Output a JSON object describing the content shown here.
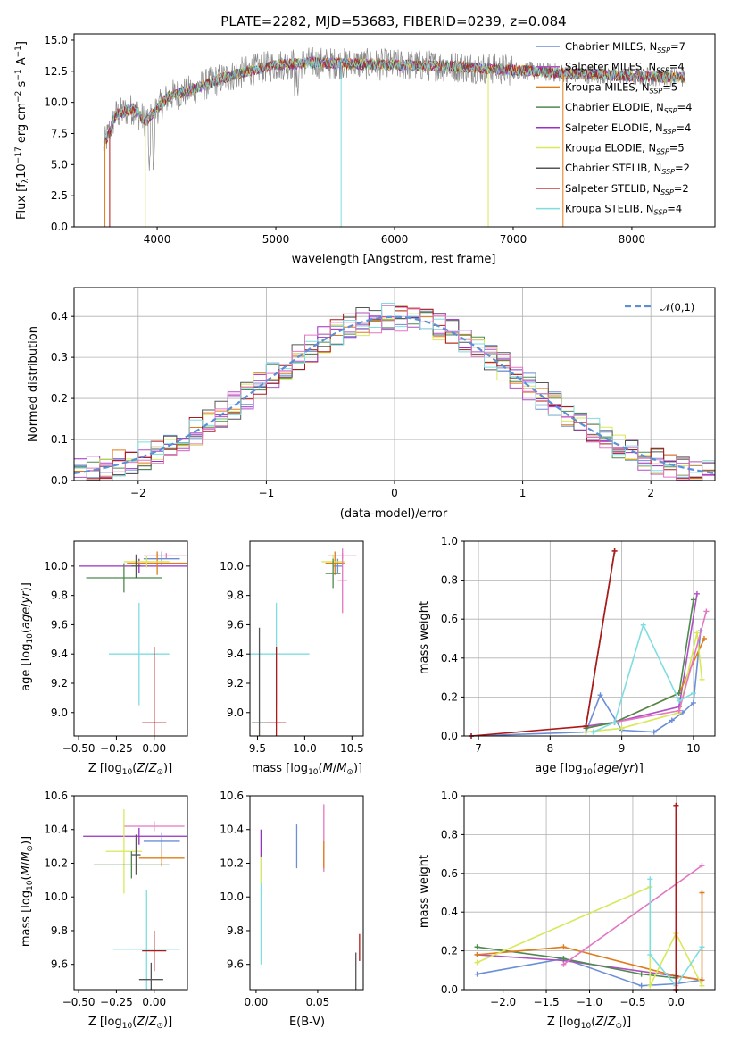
{
  "chart_data": [
    {
      "panel": "spectrum",
      "type": "line",
      "title": "PLATE=2282, MJD=53683, FIBERID=0239, z=0.084",
      "xlabel": "wavelength [Angstrom, rest frame]",
      "ylabel": "Flux [f_λ10^-17 erg cm^-2 s^-1 A^-1]",
      "xlim": [
        3300,
        8700
      ],
      "ylim": [
        0,
        15.5
      ],
      "xticks": [
        "4000",
        "5000",
        "6000",
        "7000",
        "8000"
      ],
      "yticks": [
        "0.0",
        "2.5",
        "5.0",
        "7.5",
        "10.0",
        "12.5",
        "15.0"
      ],
      "grid": false,
      "legend_position": "top-right",
      "legend": [
        {
          "name": "Chabrier MILES, N_SSP=7",
          "color": "#6b8fd6"
        },
        {
          "name": "Salpeter MILES, N_SSP=4",
          "color": "#b14fc5"
        },
        {
          "name": "Kroupa MILES, N_SSP=5",
          "color": "#e07b1a"
        },
        {
          "name": "Chabrier ELODIE, N_SSP=4",
          "color": "#4e8a4e"
        },
        {
          "name": "Salpeter ELODIE, N_SSP=4",
          "color": "#9b2ec4"
        },
        {
          "name": "Kroupa ELODIE, N_SSP=5",
          "color": "#d8e85a"
        },
        {
          "name": "Chabrier STELIB, N_SSP=2",
          "color": "#555555"
        },
        {
          "name": "Salpeter STELIB, N_SSP=2",
          "color": "#b01818"
        },
        {
          "name": "Kroupa STELIB, N_SSP=4",
          "color": "#7fdde0"
        }
      ],
      "data_color": "#888888",
      "continuum": [
        [
          3550,
          6.5
        ],
        [
          3650,
          9.0
        ],
        [
          3800,
          9.5
        ],
        [
          3900,
          8.5
        ],
        [
          4000,
          9.5
        ],
        [
          4100,
          10.5
        ],
        [
          4300,
          11.0
        ],
        [
          4500,
          11.8
        ],
        [
          4800,
          12.6
        ],
        [
          5000,
          13.0
        ],
        [
          5300,
          13.2
        ],
        [
          5600,
          13.1
        ],
        [
          6000,
          13.0
        ],
        [
          6500,
          12.9
        ],
        [
          7000,
          12.6
        ],
        [
          7500,
          12.3
        ],
        [
          8000,
          12.1
        ],
        [
          8450,
          12.0
        ]
      ]
    },
    {
      "panel": "residuals",
      "type": "step",
      "xlabel": "(data-model)/error",
      "ylabel": "Normed distribution",
      "xlim": [
        -2.5,
        2.5
      ],
      "ylim": [
        0,
        0.47
      ],
      "xticks": [
        "−2",
        "−1",
        "0",
        "1",
        "2"
      ],
      "yticks": [
        "0.0",
        "0.1",
        "0.2",
        "0.3",
        "0.4"
      ],
      "grid": true,
      "legend_position": "top-right",
      "legend": [
        {
          "name": "𝒩(0,1)",
          "color": "#5b8fd6",
          "style": "dashed"
        }
      ],
      "series_colors": [
        "#6b8fd6",
        "#b14fc5",
        "#e07b1a",
        "#4e8a4e",
        "#9b2ec4",
        "#d8e85a",
        "#555555",
        "#b01818",
        "#7fdde0",
        "#e377c2"
      ]
    },
    {
      "panel": "age-vs-Z",
      "type": "errorbar",
      "xlabel": "Z [log10(Z/Z⊙)]",
      "ylabel": "age  [log10(age/yr)]",
      "xlim": [
        -0.53,
        0.22
      ],
      "ylim": [
        8.84,
        10.17
      ],
      "xticks": [
        "−0.50",
        "−0.25",
        "0.00"
      ],
      "yticks": [
        "9.0",
        "9.2",
        "9.4",
        "9.6",
        "9.8",
        "10.0"
      ],
      "points": [
        {
          "x": -0.1,
          "y": 10.0,
          "xerr": 0.4,
          "yerr": 0.05,
          "color": "#9b2ec4"
        },
        {
          "x": 0.08,
          "y": 10.07,
          "xerr": 0.15,
          "yerr": 0.02,
          "color": "#e377c2"
        },
        {
          "x": 0.05,
          "y": 10.05,
          "xerr": 0.12,
          "yerr": 0.05,
          "color": "#6b8fd6"
        },
        {
          "x": 0.02,
          "y": 10.02,
          "xerr": 0.2,
          "yerr": 0.08,
          "color": "#e07b1a"
        },
        {
          "x": -0.05,
          "y": 10.03,
          "xerr": 0.15,
          "yerr": 0.04,
          "color": "#d8e85a"
        },
        {
          "x": -0.2,
          "y": 9.92,
          "xerr": 0.25,
          "yerr": 0.1,
          "color": "#4e8a4e"
        },
        {
          "x": -0.1,
          "y": 9.4,
          "xerr": 0.2,
          "yerr": 0.35,
          "color": "#7fdde0"
        },
        {
          "x": 0.0,
          "y": 8.93,
          "xerr": 0.08,
          "yerr": 0.52,
          "color": "#b01818"
        },
        {
          "x": -0.12,
          "y": 10.0,
          "xerr": 0.03,
          "yerr": 0.08,
          "color": "#555555"
        }
      ]
    },
    {
      "panel": "age-vs-mass",
      "type": "errorbar",
      "xlabel": "mass [log10(M/M⊙)]",
      "xlim": [
        9.42,
        10.62
      ],
      "ylim": [
        8.84,
        10.17
      ],
      "xticks": [
        "9.5",
        "10.0",
        "10.5"
      ],
      "yticks": [
        "9.0",
        "9.2",
        "9.4",
        "9.6",
        "9.8",
        "10.0"
      ],
      "points": [
        {
          "x": 10.4,
          "y": 10.07,
          "xerr": 0.15,
          "yerr": 0.02,
          "color": "#e377c2"
        },
        {
          "x": 10.35,
          "y": 10.0,
          "xerr": 0.05,
          "yerr": 0.05,
          "color": "#6b8fd6"
        },
        {
          "x": 10.32,
          "y": 10.02,
          "xerr": 0.1,
          "yerr": 0.08,
          "color": "#e07b1a"
        },
        {
          "x": 10.3,
          "y": 10.03,
          "xerr": 0.12,
          "yerr": 0.05,
          "color": "#d8e85a"
        },
        {
          "x": 10.3,
          "y": 9.95,
          "xerr": 0.08,
          "yerr": 0.1,
          "color": "#4e8a4e"
        },
        {
          "x": 10.4,
          "y": 9.9,
          "xerr": 0.05,
          "yerr": 0.22,
          "color": "#e377c2"
        },
        {
          "x": 9.7,
          "y": 9.4,
          "xerr": 0.35,
          "yerr": 0.35,
          "color": "#7fdde0"
        },
        {
          "x": 9.7,
          "y": 8.93,
          "xerr": 0.1,
          "yerr": 0.52,
          "color": "#b01818"
        },
        {
          "x": 9.52,
          "y": 8.93,
          "xerr": 0.08,
          "yerr": 0.65,
          "color": "#555555"
        }
      ]
    },
    {
      "panel": "mass-weight-vs-age",
      "type": "line",
      "xlabel": "age  [log10(age/yr)]",
      "ylabel": "mass weight",
      "xlim": [
        6.8,
        10.3
      ],
      "ylim": [
        0,
        1.0
      ],
      "xticks": [
        "7",
        "8",
        "9",
        "10"
      ],
      "yticks": [
        "0.0",
        "0.2",
        "0.4",
        "0.6",
        "0.8",
        "1.0"
      ],
      "grid": true,
      "series": [
        {
          "color": "#6b8fd6",
          "x": [
            6.9,
            8.5,
            8.7,
            9.0,
            9.45,
            9.7,
            9.85,
            10.0,
            10.1
          ],
          "y": [
            0.0,
            0.02,
            0.21,
            0.03,
            0.02,
            0.08,
            0.12,
            0.17,
            0.54
          ]
        },
        {
          "color": "#b14fc5",
          "x": [
            8.5,
            8.9,
            9.8,
            10.05
          ],
          "y": [
            0.05,
            0.07,
            0.15,
            0.73
          ]
        },
        {
          "color": "#e07b1a",
          "x": [
            8.5,
            8.9,
            9.8,
            10.15
          ],
          "y": [
            0.04,
            0.07,
            0.22,
            0.5
          ]
        },
        {
          "color": "#4e8a4e",
          "x": [
            8.5,
            8.9,
            9.8,
            10.0
          ],
          "y": [
            0.04,
            0.07,
            0.22,
            0.7
          ]
        },
        {
          "color": "#d8e85a",
          "x": [
            8.5,
            9.0,
            9.8,
            10.05,
            10.12
          ],
          "y": [
            0.02,
            0.04,
            0.12,
            0.53,
            0.29
          ]
        },
        {
          "color": "#e377c2",
          "x": [
            8.9,
            9.8,
            10.18
          ],
          "y": [
            0.07,
            0.13,
            0.64
          ]
        },
        {
          "color": "#7fdde0",
          "x": [
            8.6,
            8.9,
            9.3,
            9.8,
            10.0
          ],
          "y": [
            0.02,
            0.07,
            0.57,
            0.18,
            0.22
          ]
        },
        {
          "color": "#555555",
          "x": [
            8.5,
            8.9
          ],
          "y": [
            0.05,
            0.95
          ]
        },
        {
          "color": "#b01818",
          "x": [
            6.9,
            8.5,
            8.9
          ],
          "y": [
            0.0,
            0.05,
            0.95
          ]
        }
      ]
    },
    {
      "panel": "mass-vs-Z",
      "type": "errorbar",
      "xlabel": "Z [log10(Z/Z⊙)]",
      "ylabel": "mass [log10(M/M⊙)]",
      "xlim": [
        -0.53,
        0.22
      ],
      "ylim": [
        9.45,
        10.6
      ],
      "xticks": [
        "−0.50",
        "−0.25",
        "0.00"
      ],
      "yticks": [
        "9.6",
        "9.8",
        "10.0",
        "10.2",
        "10.4",
        "10.6"
      ],
      "points": [
        {
          "x": -0.1,
          "y": 10.36,
          "xerr": 0.37,
          "yerr": 0.05,
          "color": "#9b2ec4"
        },
        {
          "x": 0.0,
          "y": 10.42,
          "xerr": 0.2,
          "yerr": 0.03,
          "color": "#e377c2"
        },
        {
          "x": 0.05,
          "y": 10.33,
          "xerr": 0.12,
          "yerr": 0.05,
          "color": "#6b8fd6"
        },
        {
          "x": 0.05,
          "y": 10.23,
          "xerr": 0.15,
          "yerr": 0.05,
          "color": "#e07b1a"
        },
        {
          "x": -0.2,
          "y": 10.27,
          "xerr": 0.12,
          "yerr": 0.25,
          "color": "#d8e85a"
        },
        {
          "x": -0.15,
          "y": 10.19,
          "xerr": 0.25,
          "yerr": 0.08,
          "color": "#4e8a4e"
        },
        {
          "x": -0.05,
          "y": 9.69,
          "xerr": 0.22,
          "yerr": 0.35,
          "color": "#7fdde0"
        },
        {
          "x": 0.0,
          "y": 9.68,
          "xerr": 0.08,
          "yerr": 0.12,
          "color": "#b01818"
        },
        {
          "x": -0.02,
          "y": 9.51,
          "xerr": 0.08,
          "yerr": 0.1,
          "color": "#555555"
        },
        {
          "x": -0.12,
          "y": 10.25,
          "xerr": 0.03,
          "yerr": 0.12,
          "color": "#555555"
        }
      ]
    },
    {
      "panel": "mass-vs-EBV",
      "type": "errorbar",
      "xlabel": "E(B-V)",
      "xlim": [
        -0.005,
        0.087
      ],
      "ylim": [
        9.45,
        10.6
      ],
      "xticks": [
        "0.00",
        "0.05"
      ],
      "yticks": [
        "9.6",
        "9.8",
        "10.0",
        "10.2",
        "10.4",
        "10.6"
      ],
      "points": [
        {
          "x": 0.004,
          "y": 10.0,
          "xerr": 0,
          "yerr": 0.4,
          "color": "#7fdde0"
        },
        {
          "x": 0.004,
          "y": 10.2,
          "xerr": 0,
          "yerr": 0.12,
          "color": "#d8e85a"
        },
        {
          "x": 0.004,
          "y": 10.32,
          "xerr": 0,
          "yerr": 0.08,
          "color": "#9b2ec4"
        },
        {
          "x": 0.033,
          "y": 10.3,
          "xerr": 0,
          "yerr": 0.13,
          "color": "#6b8fd6"
        },
        {
          "x": 0.055,
          "y": 10.35,
          "xerr": 0,
          "yerr": 0.2,
          "color": "#e377c2"
        },
        {
          "x": 0.055,
          "y": 10.25,
          "xerr": 0,
          "yerr": 0.08,
          "color": "#e07b1a"
        },
        {
          "x": 0.081,
          "y": 9.5,
          "xerr": 0,
          "yerr": 0.17,
          "color": "#555555"
        },
        {
          "x": 0.084,
          "y": 9.7,
          "xerr": 0,
          "yerr": 0.08,
          "color": "#b01818"
        }
      ]
    },
    {
      "panel": "mass-weight-vs-Z",
      "type": "line",
      "xlabel": "Z [log10(Z/Z⊙)]",
      "ylabel": "mass weight",
      "xlim": [
        -2.45,
        0.45
      ],
      "ylim": [
        0,
        1.0
      ],
      "xticks": [
        "−2.0",
        "−1.5",
        "−1.0",
        "−0.5",
        "0.0"
      ],
      "yticks": [
        "0.0",
        "0.2",
        "0.4",
        "0.6",
        "0.8",
        "1.0"
      ],
      "grid": true,
      "series": [
        {
          "color": "#6b8fd6",
          "x": [
            -2.3,
            -1.3,
            -0.4,
            0.0,
            0.3
          ],
          "y": [
            0.08,
            0.16,
            0.02,
            0.03,
            0.05
          ]
        },
        {
          "color": "#b14fc5",
          "x": [
            -2.3,
            -1.3,
            0.0,
            0.3
          ],
          "y": [
            0.18,
            0.15,
            0.07,
            0.05
          ]
        },
        {
          "color": "#4e8a4e",
          "x": [
            -2.3,
            -1.3,
            -0.4,
            0.0
          ],
          "y": [
            0.22,
            0.16,
            0.08,
            0.06
          ]
        },
        {
          "color": "#e07b1a",
          "x": [
            -2.3,
            -1.3,
            0.0,
            0.3,
            0.3
          ],
          "y": [
            0.18,
            0.22,
            0.07,
            0.05,
            0.5
          ]
        },
        {
          "color": "#d8e85a",
          "x": [
            -2.3,
            -0.3,
            -0.3,
            0.0,
            0.3
          ],
          "y": [
            0.14,
            0.53,
            0.02,
            0.29,
            0.02
          ]
        },
        {
          "color": "#e377c2",
          "x": [
            -1.3,
            0.3
          ],
          "y": [
            0.13,
            0.64
          ]
        },
        {
          "color": "#7fdde0",
          "x": [
            -0.3,
            -0.3,
            0.0,
            0.3
          ],
          "y": [
            0.57,
            0.18,
            0.02,
            0.22
          ]
        },
        {
          "color": "#555555",
          "x": [
            0.0,
            0.0
          ],
          "y": [
            0.07,
            0.95
          ]
        },
        {
          "color": "#b01818",
          "x": [
            0.0,
            0.0
          ],
          "y": [
            0.0,
            0.95
          ]
        }
      ]
    }
  ]
}
